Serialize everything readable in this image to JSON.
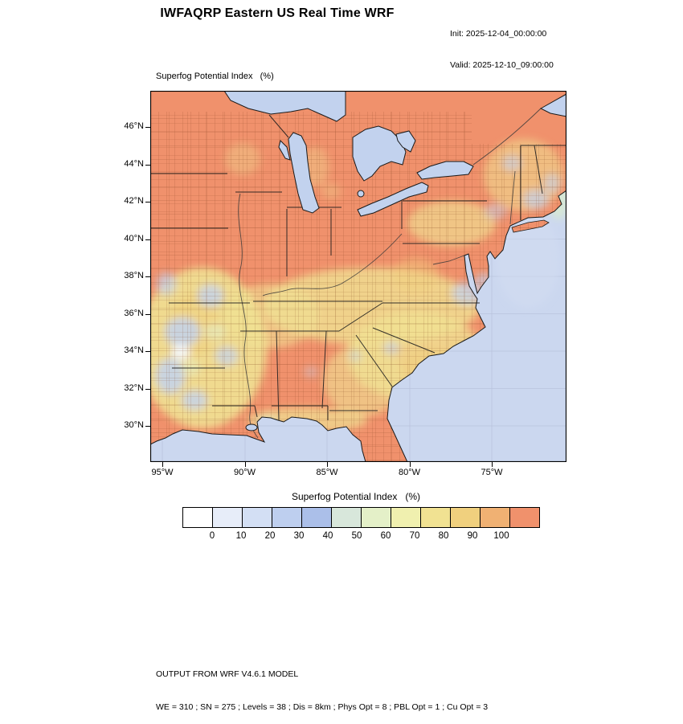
{
  "header": {
    "title": "IWFAQRP Eastern US Real Time WRF",
    "init_label": "Init: 2025-12-04_00:00:00",
    "valid_label": "Valid: 2025-12-10_09:00:00"
  },
  "map": {
    "field_label": "Superfog Potential Index   (%)",
    "y_ticks": [
      "46°N",
      "44°N",
      "42°N",
      "40°N",
      "38°N",
      "36°N",
      "34°N",
      "32°N",
      "30°N"
    ],
    "x_ticks": [
      "95°W",
      "90°W",
      "85°W",
      "80°W",
      "75°W"
    ]
  },
  "colorbar": {
    "title": "Superfog Potential Index   (%)",
    "tick_labels": [
      "0",
      "10",
      "20",
      "30",
      "40",
      "50",
      "60",
      "70",
      "80",
      "90",
      "100"
    ],
    "colors": [
      "#FFFFFF",
      "#E7EDF9",
      "#D3DFF4",
      "#BECFEF",
      "#ABBFE9",
      "#D8E7DB",
      "#E4F0C8",
      "#F0F0AF",
      "#F1E292",
      "#F0D07E",
      "#F0B173",
      "#F0916C"
    ]
  },
  "colors": {
    "land": "#F0916C",
    "ocean": "#CBD7EF",
    "lake": "#C2D2EE",
    "yellow": "#F0E294",
    "gold": "#EFCF7D",
    "blue_patch": "#C3D2EE",
    "pale_green": "#E2EFC9",
    "white_patch": "#F5F8FD",
    "border": "#1A1A1A"
  },
  "footer": {
    "line1": "OUTPUT FROM WRF V4.6.1 MODEL",
    "line2": "WE = 310 ; SN = 275 ; Levels = 38 ; Dis = 8km ; Phys Opt = 8 ; PBL Opt = 1 ; Cu Opt = 3"
  }
}
